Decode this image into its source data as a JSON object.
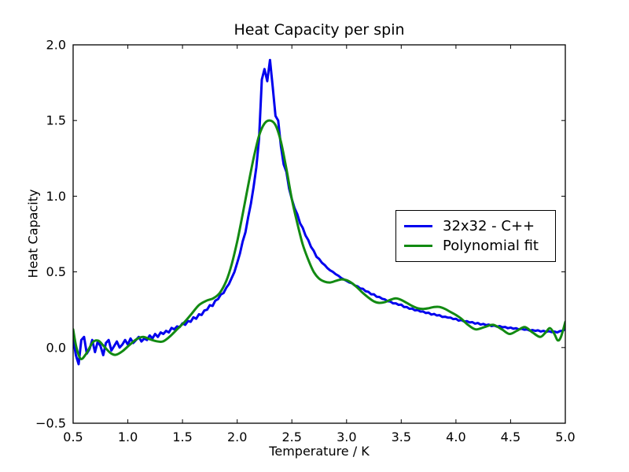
{
  "figure": {
    "title": "Heat Capacity per spin",
    "xlabel": "Temperature / K",
    "ylabel": "Heat Capacity",
    "background_color": "#ffffff",
    "axis_color": "#000000"
  },
  "legend": {
    "position": "center right",
    "items": [
      {
        "label": "32x32 - C++",
        "color": "#0000ee"
      },
      {
        "label": "Polynomial fit",
        "color": "#128a12"
      }
    ]
  },
  "chart_data": {
    "type": "line",
    "title": "Heat Capacity per spin",
    "xlabel": "Temperature / K",
    "ylabel": "Heat Capacity",
    "xlim": [
      0.5,
      5.0
    ],
    "ylim": [
      -0.5,
      2.0
    ],
    "xticks": [
      0.5,
      1.0,
      1.5,
      2.0,
      2.5,
      3.0,
      3.5,
      4.0,
      4.5,
      5.0
    ],
    "xtick_labels": [
      "0.5",
      "1.0",
      "1.5",
      "2.0",
      "2.5",
      "3.0",
      "3.5",
      "4.0",
      "4.5",
      "5.0"
    ],
    "yticks": [
      -0.5,
      0.0,
      0.5,
      1.0,
      1.5,
      2.0
    ],
    "ytick_labels": [
      "−0.5",
      "0.0",
      "0.5",
      "1.0",
      "1.5",
      "2.0"
    ],
    "grid": false,
    "legend_position": "center right",
    "series": [
      {
        "name": "32x32 - C++",
        "color": "#0000ee",
        "line_width": 3,
        "smooth": false,
        "x_start": 0.5,
        "x_step": 0.025,
        "y": [
          0.06,
          -0.05,
          -0.11,
          0.05,
          0.07,
          -0.04,
          -0.01,
          0.05,
          -0.03,
          0.04,
          0.01,
          -0.05,
          0.03,
          0.05,
          -0.02,
          0.01,
          0.04,
          0.0,
          0.02,
          0.05,
          0.02,
          0.06,
          0.03,
          0.05,
          0.07,
          0.04,
          0.06,
          0.05,
          0.08,
          0.06,
          0.09,
          0.07,
          0.1,
          0.09,
          0.11,
          0.1,
          0.13,
          0.12,
          0.14,
          0.135,
          0.16,
          0.15,
          0.175,
          0.17,
          0.2,
          0.19,
          0.22,
          0.215,
          0.245,
          0.25,
          0.28,
          0.275,
          0.31,
          0.32,
          0.35,
          0.36,
          0.395,
          0.42,
          0.46,
          0.5,
          0.56,
          0.62,
          0.7,
          0.76,
          0.86,
          0.95,
          1.06,
          1.19,
          1.38,
          1.77,
          1.84,
          1.76,
          1.9,
          1.72,
          1.53,
          1.5,
          1.33,
          1.21,
          1.16,
          1.05,
          0.98,
          0.92,
          0.88,
          0.82,
          0.79,
          0.74,
          0.71,
          0.665,
          0.64,
          0.6,
          0.585,
          0.56,
          0.545,
          0.525,
          0.51,
          0.5,
          0.485,
          0.475,
          0.46,
          0.45,
          0.44,
          0.43,
          0.425,
          0.41,
          0.405,
          0.39,
          0.388,
          0.372,
          0.368,
          0.352,
          0.352,
          0.336,
          0.334,
          0.322,
          0.318,
          0.306,
          0.304,
          0.292,
          0.292,
          0.282,
          0.284,
          0.268,
          0.268,
          0.256,
          0.258,
          0.246,
          0.248,
          0.238,
          0.238,
          0.228,
          0.23,
          0.218,
          0.222,
          0.212,
          0.214,
          0.202,
          0.204,
          0.198,
          0.198,
          0.188,
          0.19,
          0.178,
          0.182,
          0.172,
          0.174,
          0.166,
          0.168,
          0.158,
          0.162,
          0.152,
          0.156,
          0.148,
          0.152,
          0.142,
          0.146,
          0.138,
          0.142,
          0.134,
          0.136,
          0.128,
          0.132,
          0.124,
          0.128,
          0.12,
          0.124,
          0.118,
          0.12,
          0.112,
          0.116,
          0.11,
          0.114,
          0.106,
          0.11,
          0.104,
          0.108,
          0.102,
          0.106,
          0.1,
          0.108,
          0.112,
          0.12
        ]
      },
      {
        "name": "Polynomial fit",
        "color": "#128a12",
        "line_width": 3,
        "smooth": true,
        "x": [
          0.5,
          0.53,
          0.57,
          0.62,
          0.68,
          0.73,
          0.78,
          0.84,
          0.89,
          0.95,
          1.02,
          1.08,
          1.14,
          1.2,
          1.26,
          1.32,
          1.38,
          1.45,
          1.52,
          1.58,
          1.65,
          1.72,
          1.78,
          1.84,
          1.9,
          1.95,
          2.0,
          2.05,
          2.1,
          2.15,
          2.2,
          2.25,
          2.3,
          2.35,
          2.4,
          2.45,
          2.5,
          2.55,
          2.6,
          2.65,
          2.7,
          2.75,
          2.8,
          2.85,
          2.9,
          2.95,
          3.0,
          3.05,
          3.1,
          3.15,
          3.2,
          3.25,
          3.3,
          3.35,
          3.4,
          3.45,
          3.5,
          3.55,
          3.6,
          3.65,
          3.7,
          3.75,
          3.8,
          3.85,
          3.9,
          3.95,
          4.0,
          4.05,
          4.11,
          4.18,
          4.26,
          4.34,
          4.42,
          4.49,
          4.56,
          4.63,
          4.7,
          4.77,
          4.82,
          4.86,
          4.9,
          4.93,
          4.96,
          5.0
        ],
        "y": [
          0.12,
          0.0,
          -0.075,
          -0.04,
          0.035,
          0.045,
          0.01,
          -0.035,
          -0.048,
          -0.025,
          0.02,
          0.055,
          0.07,
          0.055,
          0.042,
          0.04,
          0.07,
          0.12,
          0.17,
          0.22,
          0.28,
          0.31,
          0.325,
          0.36,
          0.44,
          0.55,
          0.7,
          0.88,
          1.07,
          1.25,
          1.4,
          1.48,
          1.5,
          1.47,
          1.36,
          1.18,
          0.98,
          0.82,
          0.68,
          0.58,
          0.5,
          0.455,
          0.435,
          0.43,
          0.44,
          0.45,
          0.445,
          0.425,
          0.395,
          0.36,
          0.33,
          0.305,
          0.295,
          0.3,
          0.315,
          0.325,
          0.315,
          0.295,
          0.275,
          0.26,
          0.255,
          0.26,
          0.268,
          0.268,
          0.255,
          0.235,
          0.215,
          0.19,
          0.15,
          0.12,
          0.135,
          0.15,
          0.12,
          0.09,
          0.112,
          0.135,
          0.1,
          0.07,
          0.1,
          0.128,
          0.09,
          0.048,
          0.07,
          0.17
        ]
      }
    ]
  }
}
